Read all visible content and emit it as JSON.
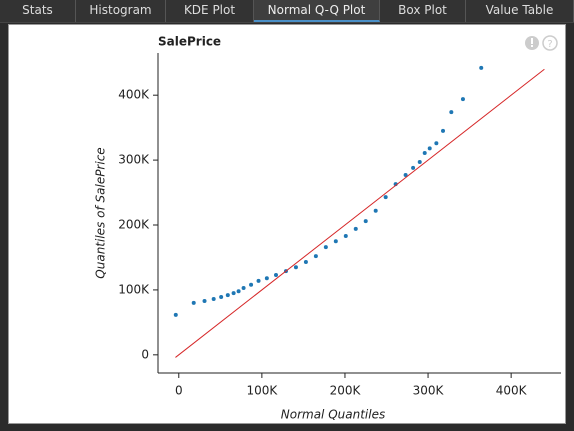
{
  "tabs": [
    "Stats",
    "Histogram",
    "KDE Plot",
    "Normal Q-Q Plot",
    "Box Plot",
    "Value Table"
  ],
  "active_tab": 3,
  "chart_data": {
    "type": "scatter",
    "title": "SalePrice",
    "xlabel": "Normal Quantiles",
    "ylabel": "Quantiles of SalePrice",
    "xlim": [
      -25000,
      460000
    ],
    "ylim": [
      -28000,
      465000
    ],
    "xticks": [
      0,
      {
        "value": 100000,
        "label": "100K"
      },
      {
        "value": 200000,
        "label": "200K"
      },
      {
        "value": 300000,
        "label": "300K"
      },
      {
        "value": 400000,
        "label": "400K"
      }
    ],
    "yticks": [
      0,
      {
        "value": 100000,
        "label": "100K"
      },
      {
        "value": 200000,
        "label": "200K"
      },
      {
        "value": 300000,
        "label": "300K"
      },
      {
        "value": 400000,
        "label": "400K"
      }
    ],
    "series": [
      {
        "type": "scatter",
        "color": "#1f77b4",
        "x": [
          -3600,
          18000,
          31000,
          42000,
          51000,
          59000,
          66000,
          72000,
          78000,
          87000,
          96000,
          106000,
          117000,
          129000,
          141000,
          153000,
          165000,
          177000,
          189000,
          201000,
          213000,
          225000,
          237000,
          249000,
          261000,
          273000,
          282000,
          290000,
          296000,
          302000,
          310000,
          318000,
          328000,
          342000,
          364000
        ],
        "values": [
          61500,
          80000,
          83000,
          86000,
          89000,
          92000,
          95000,
          98000,
          103000,
          108000,
          114000,
          118000,
          123000,
          129000,
          135000,
          143000,
          152000,
          166000,
          175000,
          183000,
          194000,
          206000,
          222000,
          243000,
          263000,
          277000,
          288000,
          297000,
          311000,
          318000,
          326000,
          345000,
          374000,
          394000,
          442000
        ]
      },
      {
        "type": "line",
        "color": "#d62728",
        "x": [
          -4000,
          440000
        ],
        "values": [
          -4000,
          440000
        ]
      }
    ]
  }
}
